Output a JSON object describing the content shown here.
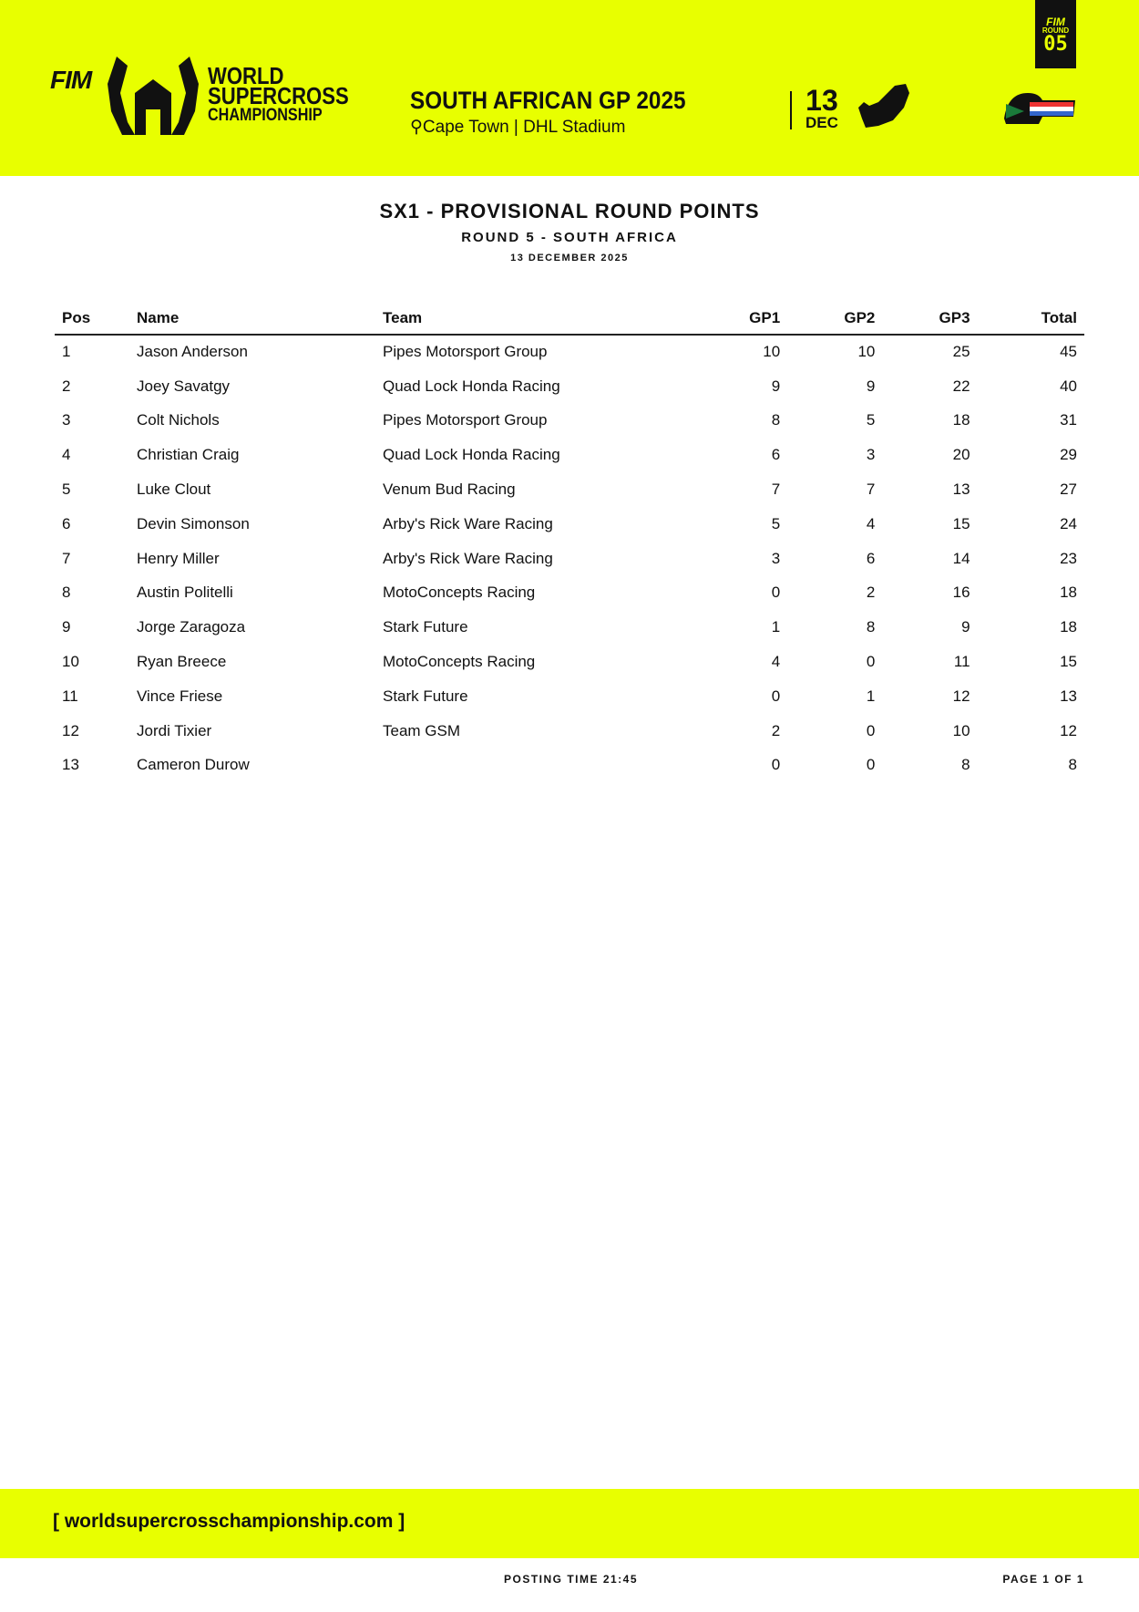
{
  "header": {
    "fim": "FIM",
    "brand": [
      "WORLD",
      "SUPERCROSS",
      "CHAMPIONSHIP"
    ],
    "event_title": "SOUTH AFRICAN GP 2025",
    "location": "Cape Town | DHL Stadium",
    "day": "13",
    "month": "DEC",
    "round_label": "ROUND",
    "round_number": "05",
    "accent": "#e8ff00"
  },
  "report": {
    "title": "SX1 - PROVISIONAL ROUND POINTS",
    "subtitle": "ROUND 5 - SOUTH AFRICA",
    "date": "13 DECEMBER 2025"
  },
  "table": {
    "columns": [
      "Pos",
      "Name",
      "Team",
      "GP1",
      "GP2",
      "GP3",
      "Total"
    ],
    "rows": [
      [
        "1",
        "Jason Anderson",
        "Pipes Motorsport Group",
        "10",
        "10",
        "25",
        "45"
      ],
      [
        "2",
        "Joey Savatgy",
        "Quad Lock Honda Racing",
        "9",
        "9",
        "22",
        "40"
      ],
      [
        "3",
        "Colt Nichols",
        "Pipes Motorsport Group",
        "8",
        "5",
        "18",
        "31"
      ],
      [
        "4",
        "Christian Craig",
        "Quad Lock Honda Racing",
        "6",
        "3",
        "20",
        "29"
      ],
      [
        "5",
        "Luke Clout",
        "Venum Bud Racing",
        "7",
        "7",
        "13",
        "27"
      ],
      [
        "6",
        "Devin Simonson",
        "Arby's Rick Ware Racing",
        "5",
        "4",
        "15",
        "24"
      ],
      [
        "7",
        "Henry Miller",
        "Arby's Rick Ware Racing",
        "3",
        "6",
        "14",
        "23"
      ],
      [
        "8",
        "Austin Politelli",
        "MotoConcepts Racing",
        "0",
        "2",
        "16",
        "18"
      ],
      [
        "9",
        "Jorge Zaragoza",
        "Stark Future",
        "1",
        "8",
        "9",
        "18"
      ],
      [
        "10",
        "Ryan Breece",
        "MotoConcepts Racing",
        "4",
        "0",
        "11",
        "15"
      ],
      [
        "11",
        "Vince Friese",
        "Stark Future",
        "0",
        "1",
        "12",
        "13"
      ],
      [
        "12",
        "Jordi Tixier",
        "Team GSM",
        "2",
        "0",
        "10",
        "12"
      ],
      [
        "13",
        "Cameron Durow",
        "",
        "0",
        "0",
        "8",
        "8"
      ]
    ]
  },
  "footer": {
    "url": "[ worldsupercrosschampionship.com ]",
    "posting_time": "POSTING TIME 21:45",
    "page": "PAGE 1 OF 1"
  }
}
